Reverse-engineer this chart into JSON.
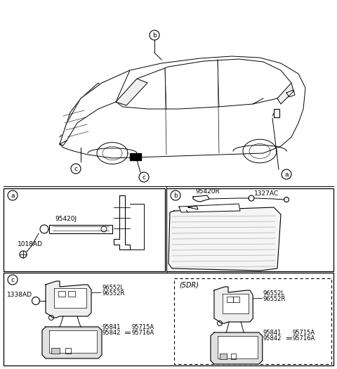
{
  "bg_color": "#ffffff",
  "fig_width": 4.8,
  "fig_height": 5.25,
  "dpi": 100,
  "box_a_parts": [
    "95420J",
    "1018AD"
  ],
  "box_b_parts": [
    "95420R",
    "1327AC"
  ],
  "box_c_parts_left": [
    "96552L",
    "96552R",
    "95841",
    "95842",
    "95715A",
    "95716A",
    "1338AD"
  ],
  "box_c_parts_right": [
    "96552L",
    "96552R",
    "95841",
    "95842",
    "95715A",
    "95716A"
  ],
  "box_c_5dr_label": "(5DR)"
}
